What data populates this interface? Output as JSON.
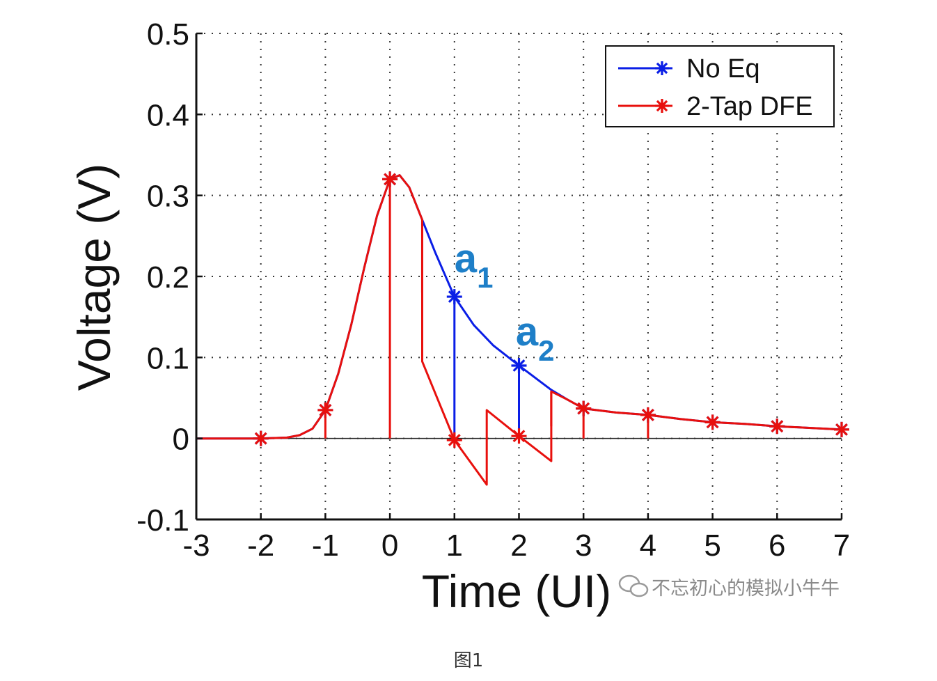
{
  "chart_data": {
    "type": "line",
    "xlabel": "Time (UI)",
    "ylabel": "Voltage (V)",
    "xlim": [
      -3,
      7
    ],
    "ylim": [
      -0.1,
      0.5
    ],
    "x_ticks": [
      "-3",
      "-2",
      "-1",
      "0",
      "1",
      "2",
      "3",
      "4",
      "5",
      "6",
      "7"
    ],
    "y_ticks": [
      "-0.1",
      "0",
      "0.1",
      "0.2",
      "0.3",
      "0.4",
      "0.5"
    ],
    "grid": true,
    "legend_position": "top-right",
    "series": [
      {
        "name": "No Eq",
        "color": "#0a1ee6",
        "marker": "asterisk",
        "curve": [
          [
            -3,
            0
          ],
          [
            -2,
            0
          ],
          [
            -1.6,
            0.001
          ],
          [
            -1.4,
            0.004
          ],
          [
            -1.2,
            0.012
          ],
          [
            -1,
            0.035
          ],
          [
            -0.8,
            0.08
          ],
          [
            -0.6,
            0.14
          ],
          [
            -0.4,
            0.21
          ],
          [
            -0.2,
            0.275
          ],
          [
            0,
            0.32
          ],
          [
            0.15,
            0.325
          ],
          [
            0.3,
            0.31
          ],
          [
            0.5,
            0.27
          ],
          [
            0.7,
            0.23
          ],
          [
            1,
            0.175
          ],
          [
            1.3,
            0.14
          ],
          [
            1.6,
            0.115
          ],
          [
            2,
            0.09
          ],
          [
            2.3,
            0.072
          ],
          [
            2.5,
            0.06
          ],
          [
            2.75,
            0.048
          ],
          [
            3,
            0.037
          ],
          [
            3.5,
            0.032
          ],
          [
            4,
            0.029
          ],
          [
            4.5,
            0.024
          ],
          [
            5,
            0.02
          ],
          [
            5.5,
            0.018
          ],
          [
            6,
            0.015
          ],
          [
            6.5,
            0.013
          ],
          [
            7,
            0.011
          ]
        ],
        "sample_x": [
          -2,
          -1,
          0,
          1,
          2,
          3,
          4,
          5,
          6,
          7
        ],
        "sample_y": [
          0,
          0.035,
          0.32,
          0.175,
          0.09,
          0.037,
          0.029,
          0.02,
          0.015,
          0.011
        ]
      },
      {
        "name": "2-Tap DFE",
        "color": "#e8100d",
        "marker": "asterisk",
        "curve": [
          [
            -3,
            0
          ],
          [
            -2,
            0
          ],
          [
            -1.6,
            0.001
          ],
          [
            -1.4,
            0.004
          ],
          [
            -1.2,
            0.012
          ],
          [
            -1,
            0.035
          ],
          [
            -0.8,
            0.08
          ],
          [
            -0.6,
            0.14
          ],
          [
            -0.4,
            0.21
          ],
          [
            -0.2,
            0.275
          ],
          [
            0,
            0.32
          ],
          [
            0.15,
            0.325
          ],
          [
            0.3,
            0.31
          ],
          [
            0.5,
            0.27
          ],
          [
            0.5,
            0.095
          ],
          [
            1,
            -0.002
          ],
          [
            1.5,
            -0.057
          ],
          [
            1.5,
            0.035
          ],
          [
            2,
            0.003
          ],
          [
            2.5,
            -0.028
          ],
          [
            2.5,
            0.058
          ],
          [
            2.75,
            0.048
          ],
          [
            3,
            0.037
          ],
          [
            3.5,
            0.032
          ],
          [
            4,
            0.029
          ],
          [
            4.5,
            0.024
          ],
          [
            5,
            0.02
          ],
          [
            5.5,
            0.018
          ],
          [
            6,
            0.015
          ],
          [
            6.5,
            0.013
          ],
          [
            7,
            0.011
          ]
        ],
        "sample_x": [
          -2,
          -1,
          0,
          1,
          2,
          3,
          4,
          5,
          6,
          7
        ],
        "sample_y": [
          0,
          0.035,
          0.32,
          -0.002,
          0.003,
          0.037,
          0.029,
          0.02,
          0.015,
          0.011
        ]
      }
    ],
    "stems": [
      {
        "x": -1,
        "y": 0.035,
        "color": "#e8100d"
      },
      {
        "x": 0,
        "y": 0.32,
        "color": "#e8100d"
      },
      {
        "x": 0.5,
        "y": 0.27,
        "y0": 0.18,
        "color": "#e8100d"
      },
      {
        "x": 1,
        "y": 0.175,
        "color": "#0a1ee6"
      },
      {
        "x": 2,
        "y": 0.09,
        "color": "#0a1ee6"
      },
      {
        "x": 2.5,
        "y": 0.058,
        "y0": 0.015,
        "color": "#e8100d"
      },
      {
        "x": 3,
        "y": 0.037,
        "color": "#e8100d"
      },
      {
        "x": 4,
        "y": 0.029,
        "color": "#e8100d"
      }
    ],
    "annotations": [
      {
        "text": "a",
        "sub": "1",
        "x": 1.0,
        "y": 0.205
      },
      {
        "text": "a",
        "sub": "2",
        "x": 1.95,
        "y": 0.115
      }
    ]
  },
  "watermark": "不忘初心的模拟小牛牛",
  "caption": "图1"
}
